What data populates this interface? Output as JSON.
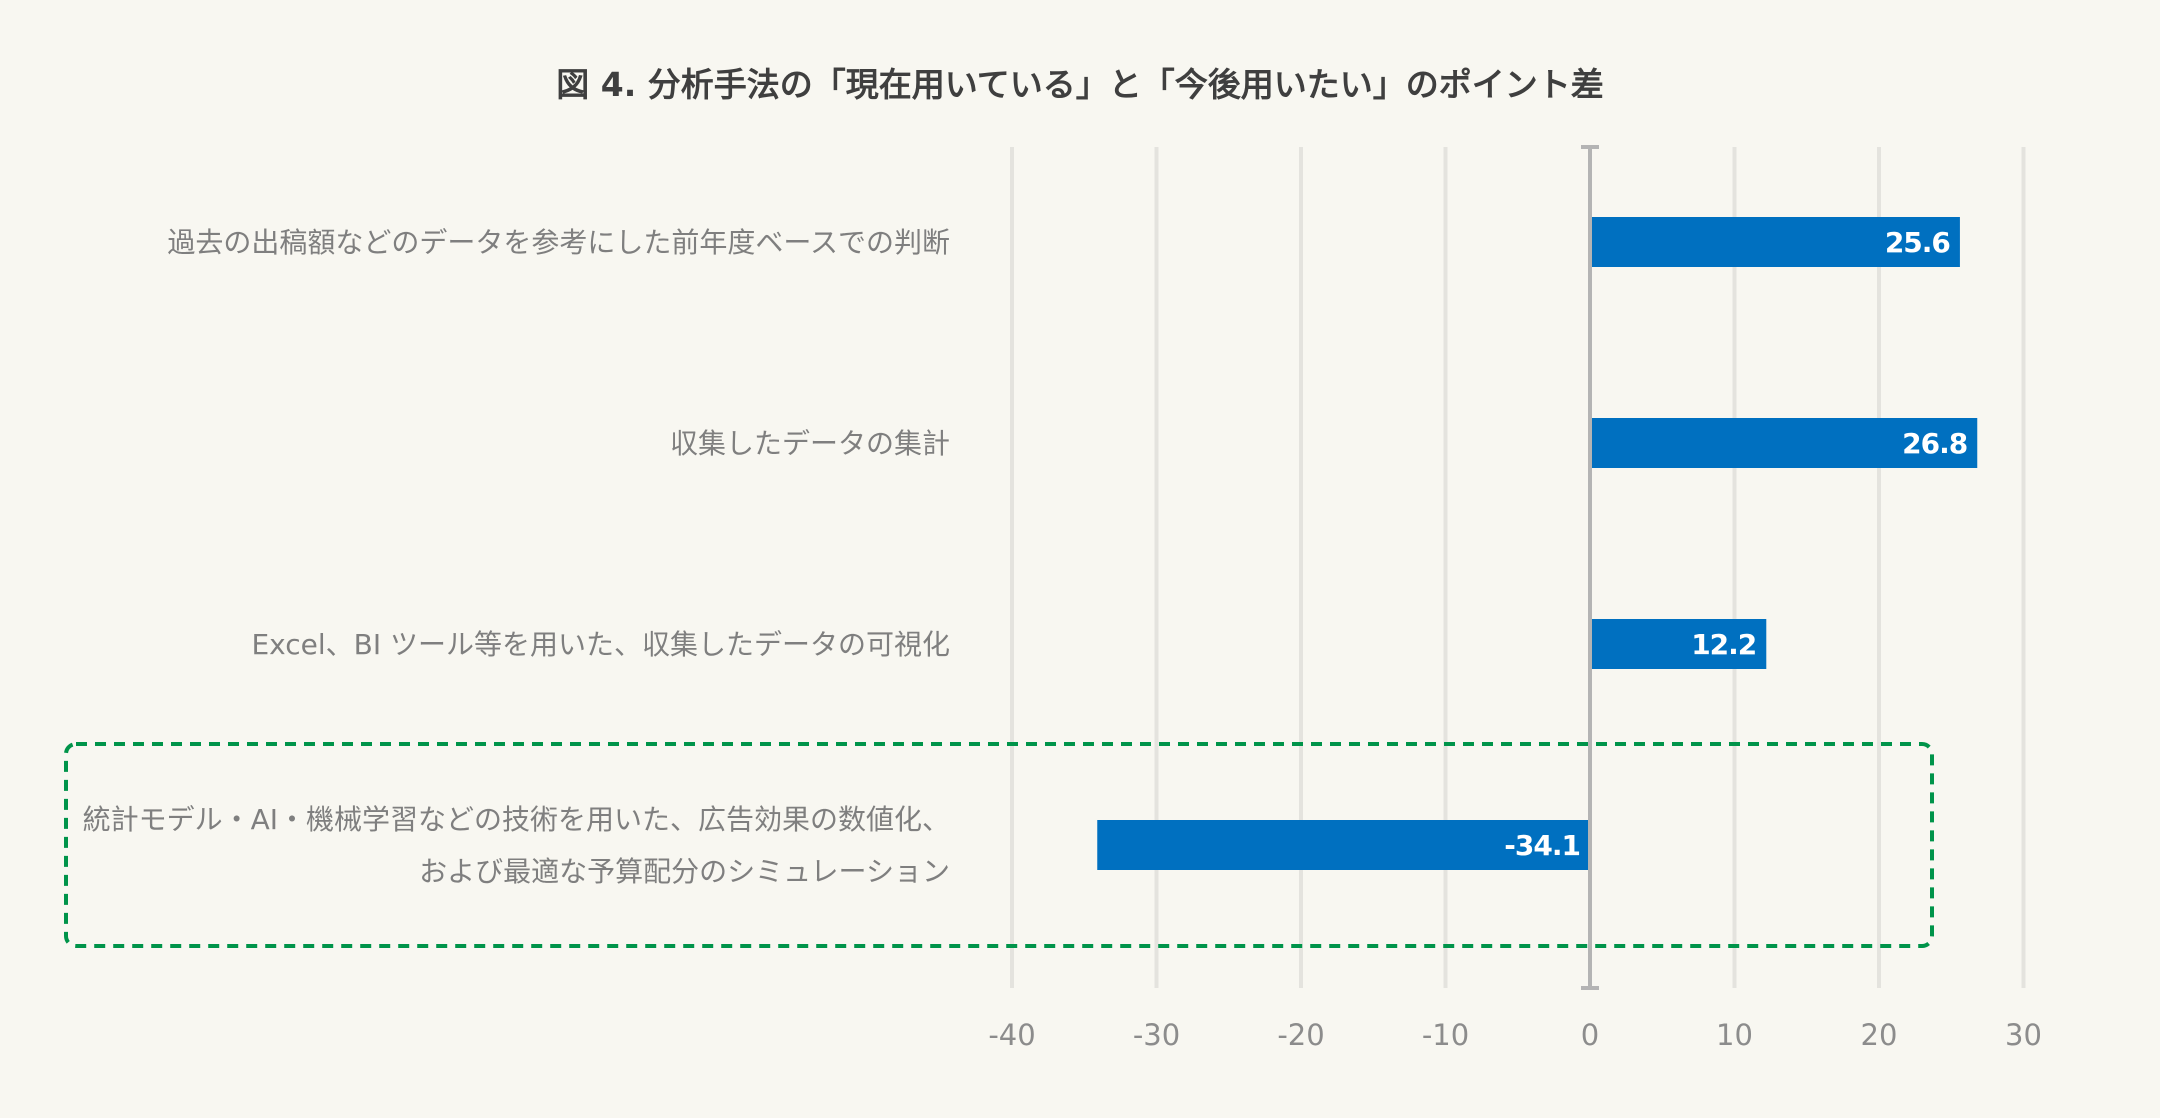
{
  "chart_data": {
    "type": "bar",
    "orientation": "horizontal",
    "title": "図 4. 分析手法の「現在用いている」と「今後用いたい」のポイント差",
    "categories": [
      [
        "過去の出稿額などのデータを参考にした前年度ベースでの判断"
      ],
      [
        "収集したデータの集計"
      ],
      [
        "Excel、BI ツール等を用いた、収集したデータの可視化"
      ],
      [
        "統計モデル・AI・機械学習などの技術を用いた、広告効果の数値化、",
        "および最適な予算配分のシミュレーション"
      ]
    ],
    "values": [
      25.6,
      26.8,
      12.2,
      -34.1
    ],
    "value_labels": [
      "25.6",
      "26.8",
      "12.2",
      "-34.1"
    ],
    "xlim": [
      -40,
      30
    ],
    "xticks": [
      -40,
      -30,
      -20,
      -10,
      0,
      10,
      20,
      30
    ],
    "grid": true,
    "bar_color": "#0070c0",
    "highlight": {
      "category_index": 3,
      "style": "dashed-box",
      "color": "#00944a"
    }
  },
  "colors": {
    "background": "#f8f7f1",
    "gridline": "#e4e3de",
    "zero_axis": "#b4b4b4",
    "title": "#3f3f3f",
    "category_text": "#7f7f7f",
    "tick_text": "#8c8c8c"
  }
}
